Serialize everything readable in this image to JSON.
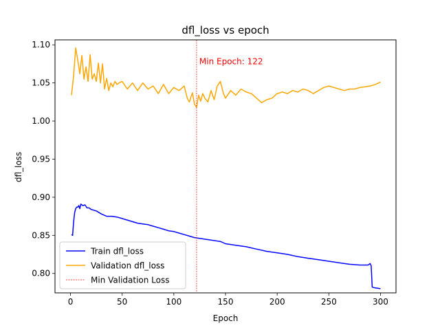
{
  "chart_data": {
    "type": "line",
    "title": "dfl_loss vs epoch",
    "xlabel": "Epoch",
    "ylabel": "dfl_loss",
    "xlim": [
      -15,
      315
    ],
    "ylim": [
      0.7745,
      1.1065
    ],
    "xticks": [
      0,
      50,
      100,
      150,
      200,
      250,
      300
    ],
    "yticks": [
      0.8,
      0.85,
      0.9,
      0.95,
      1.0,
      1.05,
      1.1
    ],
    "grid": false,
    "legend_position": "lower-left",
    "series": [
      {
        "name": "Train dfl_loss",
        "color": "#0000ff",
        "x": [
          1,
          2,
          3,
          4,
          5,
          6,
          7,
          8,
          9,
          10,
          12,
          14,
          16,
          18,
          20,
          25,
          30,
          35,
          40,
          45,
          50,
          55,
          60,
          65,
          70,
          75,
          80,
          85,
          90,
          95,
          100,
          105,
          110,
          115,
          120,
          125,
          130,
          135,
          140,
          145,
          150,
          160,
          170,
          180,
          190,
          200,
          210,
          220,
          230,
          240,
          250,
          260,
          270,
          280,
          288,
          290,
          291,
          292,
          295,
          300
        ],
        "y": [
          0.851,
          0.85,
          0.868,
          0.88,
          0.885,
          0.887,
          0.887,
          0.889,
          0.885,
          0.891,
          0.889,
          0.89,
          0.886,
          0.886,
          0.884,
          0.882,
          0.878,
          0.875,
          0.875,
          0.874,
          0.872,
          0.87,
          0.868,
          0.866,
          0.865,
          0.864,
          0.862,
          0.86,
          0.858,
          0.856,
          0.855,
          0.853,
          0.851,
          0.849,
          0.847,
          0.846,
          0.845,
          0.844,
          0.843,
          0.842,
          0.839,
          0.837,
          0.835,
          0.832,
          0.829,
          0.827,
          0.825,
          0.822,
          0.82,
          0.818,
          0.816,
          0.814,
          0.812,
          0.811,
          0.811,
          0.813,
          0.81,
          0.782,
          0.781,
          0.78
        ]
      },
      {
        "name": "Validation dfl_loss",
        "color": "#ffa500",
        "x": [
          1,
          3,
          5,
          7,
          9,
          11,
          13,
          15,
          17,
          19,
          21,
          23,
          25,
          27,
          29,
          31,
          33,
          35,
          37,
          39,
          41,
          43,
          45,
          47,
          50,
          55,
          60,
          65,
          70,
          75,
          80,
          85,
          90,
          95,
          100,
          105,
          110,
          113,
          115,
          118,
          120,
          122,
          124,
          126,
          128,
          130,
          133,
          136,
          139,
          142,
          145,
          148,
          150,
          155,
          160,
          165,
          170,
          175,
          180,
          185,
          190,
          195,
          200,
          205,
          210,
          215,
          220,
          225,
          230,
          235,
          240,
          245,
          250,
          255,
          260,
          265,
          270,
          275,
          280,
          285,
          290,
          295,
          300
        ],
        "y": [
          1.034,
          1.06,
          1.096,
          1.08,
          1.062,
          1.086,
          1.055,
          1.071,
          1.052,
          1.087,
          1.055,
          1.062,
          1.052,
          1.076,
          1.05,
          1.075,
          1.042,
          1.056,
          1.04,
          1.05,
          1.045,
          1.052,
          1.048,
          1.05,
          1.052,
          1.042,
          1.05,
          1.04,
          1.05,
          1.042,
          1.046,
          1.036,
          1.048,
          1.036,
          1.044,
          1.04,
          1.046,
          1.03,
          1.025,
          1.037,
          1.022,
          1.018,
          1.034,
          1.026,
          1.036,
          1.03,
          1.025,
          1.04,
          1.028,
          1.046,
          1.052,
          1.036,
          1.03,
          1.04,
          1.034,
          1.042,
          1.038,
          1.036,
          1.03,
          1.024,
          1.028,
          1.03,
          1.036,
          1.038,
          1.036,
          1.04,
          1.038,
          1.042,
          1.04,
          1.036,
          1.04,
          1.044,
          1.046,
          1.044,
          1.042,
          1.04,
          1.042,
          1.042,
          1.044,
          1.045,
          1.046,
          1.048,
          1.051
        ]
      }
    ],
    "vline": {
      "name": "Min Validation Loss",
      "x": 122,
      "color": "#ff0000",
      "annotation": "Min Epoch: 122"
    }
  }
}
